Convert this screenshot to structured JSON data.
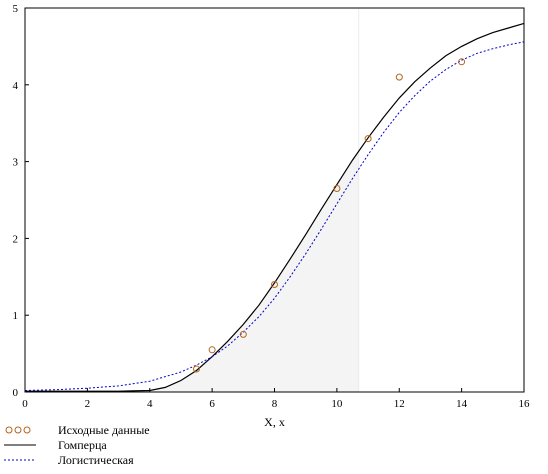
{
  "chart_data": {
    "type": "line",
    "xlabel": "X, x",
    "ylabel": "",
    "xlim": [
      0,
      16
    ],
    "ylim": [
      0,
      5
    ],
    "x_ticks": [
      "0",
      "2",
      "4",
      "6",
      "8",
      "10",
      "12",
      "14",
      "16"
    ],
    "y_ticks": [
      "0",
      "1",
      "2",
      "3",
      "4",
      "5"
    ],
    "grid": false,
    "shaded_region_x": [
      0,
      10.7
    ],
    "legend_position": "bottom-left",
    "series": [
      {
        "name": "Исходные данные",
        "kind": "scatter",
        "color": "#b5651d",
        "x": [
          5.5,
          6,
          7,
          8,
          10,
          11,
          12,
          14
        ],
        "y": [
          0.3,
          0.55,
          0.75,
          1.4,
          2.65,
          3.3,
          4.1,
          4.3
        ]
      },
      {
        "name": "Гомперца",
        "kind": "line",
        "style": "solid",
        "color": "#000000",
        "x": [
          0,
          1,
          2,
          3,
          4,
          4.5,
          5,
          5.5,
          6,
          6.5,
          7,
          7.5,
          8,
          8.5,
          9,
          9.5,
          10,
          10.5,
          11,
          11.5,
          12,
          12.5,
          13,
          13.5,
          14,
          14.5,
          15,
          15.5,
          16
        ],
        "y": [
          0.01,
          0.01,
          0.01,
          0.01,
          0.02,
          0.06,
          0.15,
          0.28,
          0.46,
          0.66,
          0.88,
          1.13,
          1.42,
          1.73,
          2.05,
          2.38,
          2.7,
          3.02,
          3.31,
          3.58,
          3.83,
          4.04,
          4.22,
          4.38,
          4.5,
          4.6,
          4.68,
          4.74,
          4.8
        ]
      },
      {
        "name": "Логистическая",
        "kind": "line",
        "style": "dotted",
        "color": "#0000cc",
        "x": [
          0,
          1,
          2,
          3,
          4,
          5,
          5.5,
          6,
          6.5,
          7,
          7.5,
          8,
          8.5,
          9,
          9.5,
          10,
          10.5,
          11,
          11.5,
          12,
          12.5,
          13,
          13.5,
          14,
          14.5,
          15,
          15.5,
          16
        ],
        "y": [
          0.02,
          0.03,
          0.05,
          0.08,
          0.14,
          0.26,
          0.35,
          0.46,
          0.6,
          0.78,
          0.98,
          1.22,
          1.5,
          1.8,
          2.12,
          2.45,
          2.78,
          3.09,
          3.38,
          3.64,
          3.86,
          4.05,
          4.2,
          4.32,
          4.41,
          4.47,
          4.52,
          4.56
        ]
      }
    ]
  }
}
